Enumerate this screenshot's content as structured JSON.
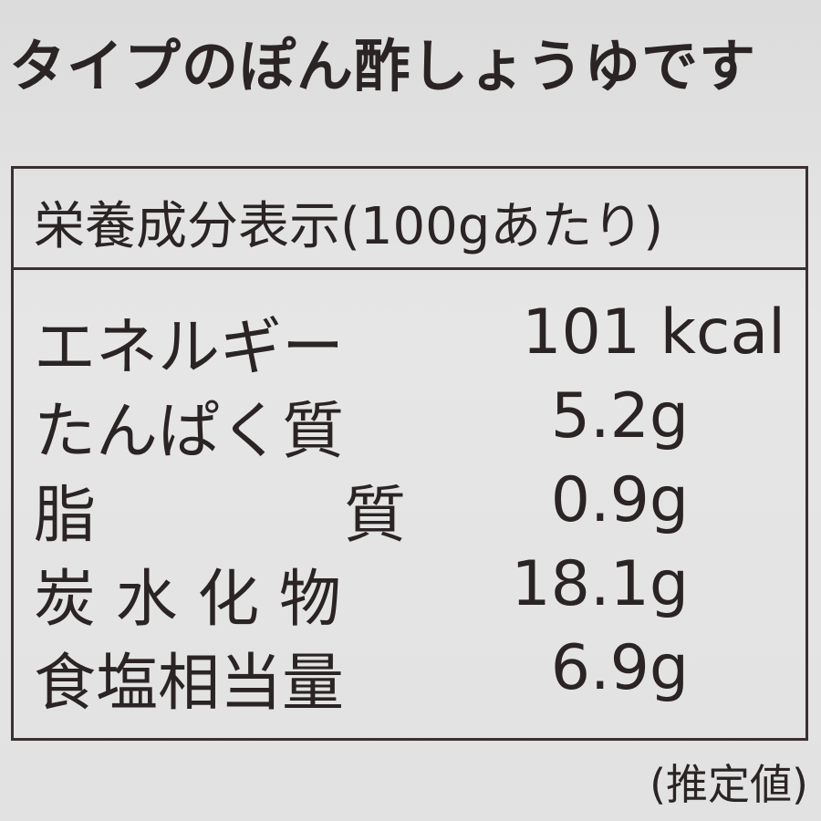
{
  "top_text": "タイプのぽん酢しょうゆです",
  "table": {
    "header": "栄養成分表示(100gあたり)",
    "rows": [
      {
        "label": "エネルギー",
        "value": "101 kcal"
      },
      {
        "label": "たんぱく質",
        "value": "5.2g"
      },
      {
        "label": "脂　　　　質",
        "value": "0.9g"
      },
      {
        "label": "炭 水 化 物",
        "value": "18.1g"
      },
      {
        "label": "食塩相当量",
        "value": "6.9g"
      }
    ]
  },
  "footnote": "(推定値)"
}
